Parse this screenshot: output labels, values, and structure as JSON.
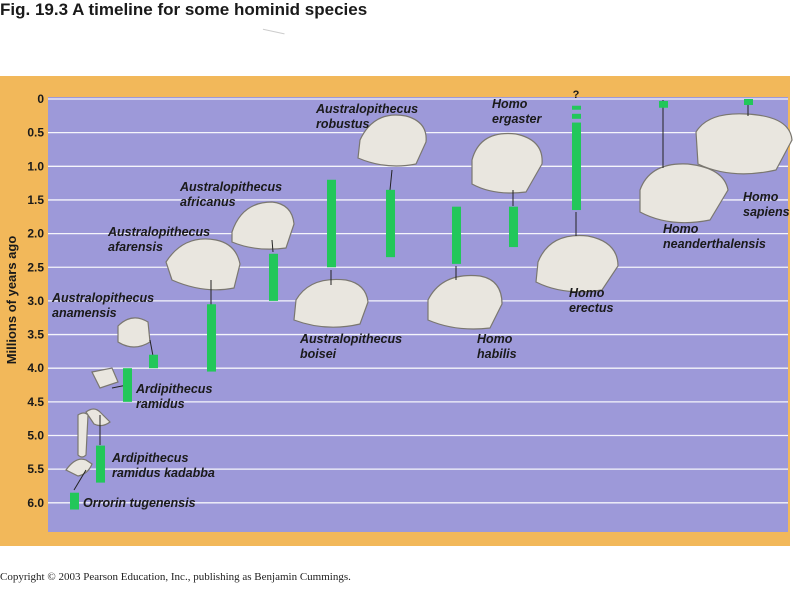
{
  "figure": {
    "title": "Fig. 19.3  A timeline for some hominid species",
    "copyright": "Copyright © 2003 Pearson Education, Inc., publishing as Benjamin Cummings."
  },
  "colors": {
    "frame": "#f2b85a",
    "plot_bg": "#9d99d9",
    "gridline": "#ffffff",
    "bar": "#22c75a",
    "text": "#1a1a1a"
  },
  "chart_data": {
    "type": "range-bar",
    "title": "A timeline for some hominid species",
    "ylabel": "Millions of years ago",
    "ylim": [
      0,
      6.2
    ],
    "y_inverted": true,
    "y_ticks": [
      "0",
      "0.5",
      "1.0",
      "1.5",
      "2.0",
      "2.5",
      "3.0",
      "3.5",
      "4.0",
      "4.5",
      "5.0",
      "5.5",
      "6.0"
    ],
    "y_tick_values": [
      0,
      0.5,
      1.0,
      1.5,
      2.0,
      2.5,
      3.0,
      3.5,
      4.0,
      4.5,
      5.0,
      5.5,
      6.0
    ],
    "grid": true,
    "series": [
      {
        "name": "Orrorin tugenensis",
        "label_lines": [
          "Orrorin tugenensis"
        ],
        "start": 6.1,
        "end": 5.85
      },
      {
        "name": "Ardipithecus ramidus kadabba",
        "label_lines": [
          "Ardipithecus",
          "ramidus kadabba"
        ],
        "start": 5.7,
        "end": 5.15
      },
      {
        "name": "Ardipithecus ramidus",
        "label_lines": [
          "Ardipithecus",
          "ramidus"
        ],
        "start": 4.5,
        "end": 4.0
      },
      {
        "name": "Australopithecus anamensis",
        "label_lines": [
          "Australopithecus",
          "anamensis"
        ],
        "start": 4.0,
        "end": 3.8
      },
      {
        "name": "Australopithecus afarensis",
        "label_lines": [
          "Australopithecus",
          "afarensis"
        ],
        "start": 4.05,
        "end": 3.05
      },
      {
        "name": "Australopithecus africanus",
        "label_lines": [
          "Australopithecus",
          "africanus"
        ],
        "start": 3.0,
        "end": 2.3
      },
      {
        "name": "Australopithecus boisei",
        "label_lines": [
          "Australopithecus",
          "boisei"
        ],
        "start": 2.5,
        "end": 1.2
      },
      {
        "name": "Australopithecus robustus",
        "label_lines": [
          "Australopithecus",
          "robustus"
        ],
        "start": 2.35,
        "end": 1.35
      },
      {
        "name": "Homo habilis",
        "label_lines": [
          "Homo",
          "habilis"
        ],
        "start": 2.45,
        "end": 1.6
      },
      {
        "name": "Homo ergaster",
        "label_lines": [
          "Homo",
          "ergaster"
        ],
        "start": 2.2,
        "end": 1.6
      },
      {
        "name": "Homo erectus",
        "label_lines": [
          "Homo",
          "erectus"
        ],
        "start": 1.65,
        "end": 0.1,
        "uncertain_marker": "?"
      },
      {
        "name": "Homo neanderthalensis",
        "label_lines": [
          "Homo",
          "neanderthalensis"
        ],
        "start": 0.13,
        "end": 0.03
      },
      {
        "name": "Homo sapiens",
        "label_lines": [
          "Homo",
          "sapiens"
        ],
        "start": 0.05,
        "end": 0.0
      }
    ]
  }
}
